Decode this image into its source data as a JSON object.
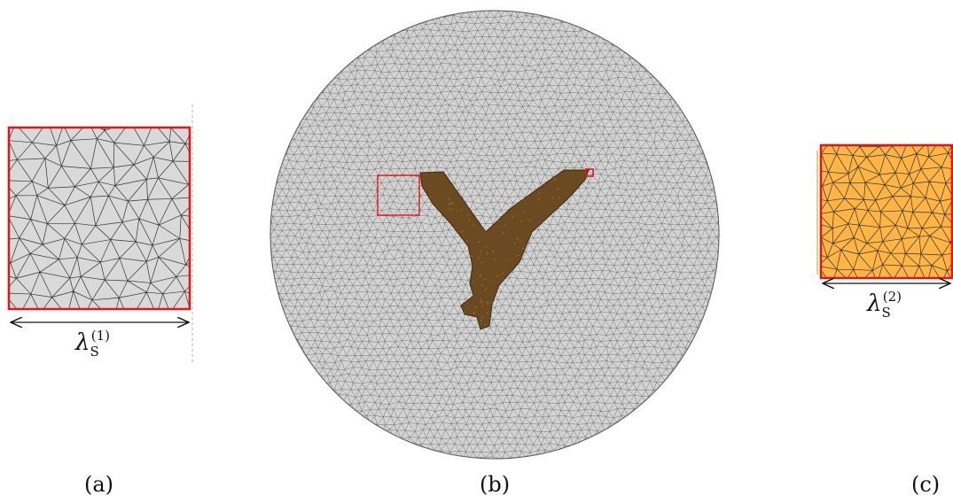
{
  "panels": {
    "a": {
      "label": "(a)",
      "dimension": {
        "symbol": "λ",
        "subscript": "S",
        "superscript": "(1)"
      },
      "fill": "#d9d9d9",
      "border": "#e0161c"
    },
    "b": {
      "label": "(b)",
      "mesh_fill": "#d3d3d3",
      "inclusion_fill": "#6b4a22",
      "highlight_color": "#e0161c"
    },
    "c": {
      "label": "(c)",
      "dimension": {
        "symbol": "λ",
        "subscript": "S",
        "superscript": "(2)"
      },
      "fill": "#ffb545",
      "border": "#e0161c"
    }
  },
  "colors": {
    "mesh_line": "#333333",
    "arrow": "#111111"
  }
}
